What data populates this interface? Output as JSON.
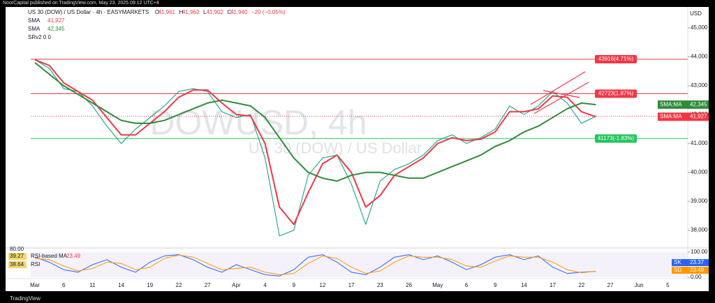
{
  "top_bar": "NoorCapital published on TradingView.com, May 23, 2025 09:12 UTC+4",
  "footer": "TradingView",
  "chart_data": [
    {
      "type": "line",
      "title": "US 30 (DOW) / US Dollar · 4h · EASYMARKETS",
      "quote": [
        "O",
        "41,961",
        "H",
        "41,962",
        "L",
        "41,902",
        "C",
        "41,940",
        "−20 (−0.05%)"
      ],
      "indicator": "SRv2 0 0",
      "watermark": "DOWUSD, 4h",
      "watermark_sub": "US 30 (DOW) / US Dollar",
      "currency": "USD",
      "categories": [
        "Mar",
        null,
        "6",
        null,
        "11",
        null,
        "14",
        null,
        "19",
        null,
        "22",
        null,
        "27",
        null,
        "Apr",
        null,
        "4",
        null,
        "9",
        null,
        "12",
        null,
        "17",
        null,
        "23",
        null,
        "26",
        null,
        "May",
        null,
        "6",
        null,
        "9",
        null,
        "14",
        null,
        "17",
        null,
        "22",
        null,
        "27",
        null,
        "Jun",
        null,
        "5"
      ],
      "series": [
        {
          "color": "#089981",
          "values": [
            43900,
            43600,
            42900,
            42800,
            42300,
            41600,
            41000,
            41500,
            41900,
            42300,
            42800,
            42900,
            42800,
            42100,
            41900,
            42000,
            40500,
            37800,
            38000,
            39900,
            40500,
            40600,
            39600,
            38200,
            39700,
            40100,
            40300,
            40600,
            41100,
            41300,
            41000,
            41200,
            41500,
            42300,
            42000,
            42300,
            42800,
            42400,
            41700,
            41940,
            null,
            null,
            null,
            null,
            null
          ]
        },
        {
          "name": "SMA",
          "color": "#f23645",
          "badge": "SMA:MA",
          "value_label": "41,927",
          "values": [
            43900,
            43700,
            43100,
            42800,
            42500,
            41900,
            41300,
            41300,
            41700,
            42100,
            42600,
            42850,
            42850,
            42400,
            42000,
            41950,
            41000,
            38800,
            38200,
            39300,
            40300,
            40600,
            40000,
            38800,
            39200,
            39900,
            40200,
            40500,
            41000,
            41200,
            41100,
            41150,
            41400,
            42100,
            42100,
            42200,
            42650,
            42600,
            42100,
            41927,
            null,
            null,
            null,
            null,
            null
          ]
        },
        {
          "name": "SMA",
          "color": "#2e8b3a",
          "badge": "SMA:MA",
          "value_label": "42,345",
          "values": [
            43800,
            43400,
            43000,
            42700,
            42400,
            42100,
            41800,
            41700,
            41700,
            41800,
            42000,
            42200,
            42400,
            42500,
            42400,
            42300,
            41900,
            41200,
            40500,
            40000,
            39800,
            39700,
            39900,
            40000,
            40000,
            39900,
            39800,
            39800,
            40000,
            40200,
            40400,
            40600,
            40900,
            41100,
            41400,
            41600,
            41900,
            42200,
            42400,
            42345,
            null,
            null,
            null,
            null,
            null
          ]
        }
      ],
      "levels": [
        {
          "value": 43916,
          "label": "43916(4.71%)",
          "color": "#f23645"
        },
        {
          "value": 42723,
          "label": "42723(1.87%)",
          "color": "#f23645"
        },
        {
          "value": 41173,
          "label": "41173(-1.83%)",
          "color": "#22c55e"
        }
      ],
      "ylim": [
        37410,
        45580
      ],
      "yticks": [
        {
          "value": 38000,
          "label": "38,000"
        },
        {
          "value": 39000,
          "label": "39,000"
        },
        {
          "value": 40000,
          "label": "40,000"
        },
        {
          "value": 41000,
          "label": "41,000"
        },
        {
          "value": 42000,
          "label": "42,000"
        },
        {
          "value": 43000,
          "label": "43,000"
        },
        {
          "value": 44000,
          "label": "44,000"
        },
        {
          "value": 45000,
          "label": "45,000"
        }
      ]
    },
    {
      "type": "line",
      "left_labels": [
        "80.00",
        "39.27",
        "RSI-based MA",
        "23.49",
        "38.64",
        "RSI"
      ],
      "series": [
        {
          "name": "SK",
          "color": "#2962ff",
          "value_label": "23.37",
          "values": [
            80,
            60,
            30,
            20,
            50,
            70,
            40,
            20,
            60,
            85,
            90,
            70,
            40,
            20,
            50,
            30,
            10,
            5,
            30,
            80,
            90,
            60,
            20,
            10,
            40,
            80,
            90,
            70,
            85,
            60,
            30,
            50,
            80,
            90,
            70,
            85,
            40,
            15,
            20,
            23.37,
            null,
            null,
            null,
            null,
            null
          ]
        },
        {
          "name": "SD",
          "color": "#ff9800",
          "value_label": "23.49",
          "values": [
            75,
            70,
            45,
            25,
            35,
            60,
            55,
            30,
            40,
            75,
            88,
            80,
            55,
            30,
            35,
            40,
            20,
            10,
            15,
            55,
            85,
            75,
            40,
            15,
            25,
            60,
            85,
            80,
            80,
            70,
            45,
            40,
            65,
            85,
            80,
            80,
            60,
            30,
            18,
            23.49,
            null,
            null,
            null,
            null,
            null
          ]
        }
      ],
      "ylim": [
        0,
        100
      ],
      "yticks": [
        {
          "value": 0,
          "label": "0.00"
        },
        {
          "value": 100,
          "label": "100.00"
        }
      ]
    }
  ]
}
